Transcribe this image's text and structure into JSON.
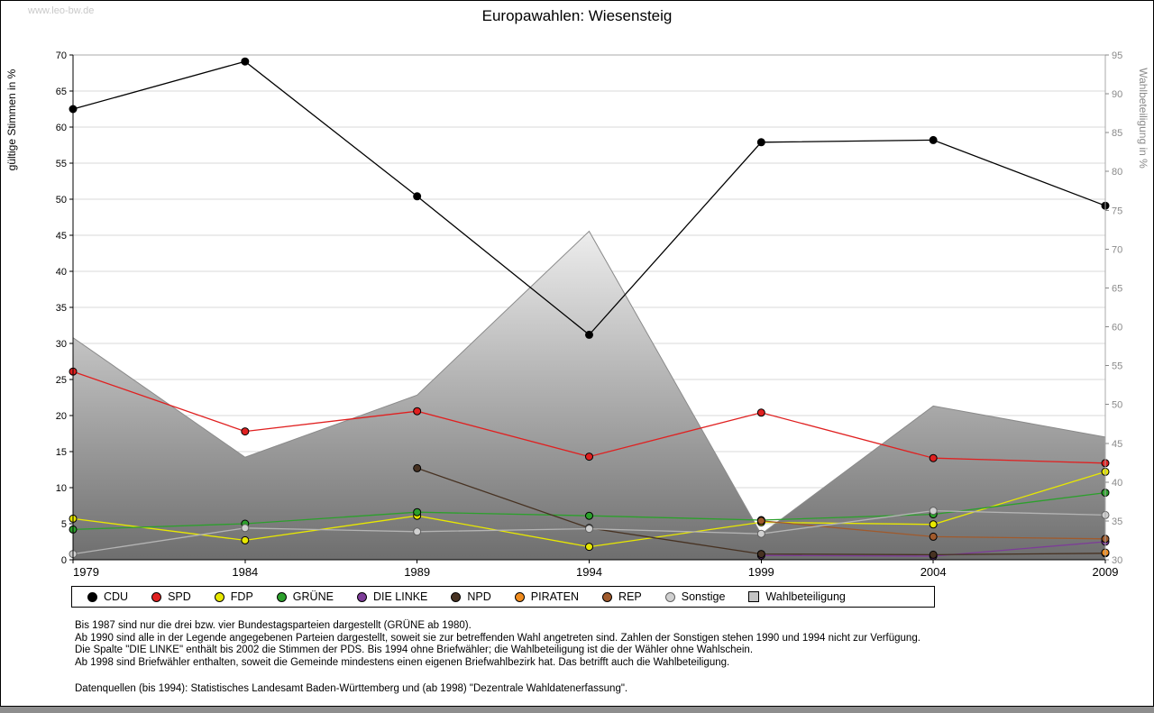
{
  "watermark": "www.leo-bw.de",
  "title": "Europawahlen: Wiesensteig",
  "chart_data": {
    "type": "line",
    "years": [
      "1979",
      "1984",
      "1989",
      "1994",
      "1999",
      "2004",
      "2009"
    ],
    "left_axis": {
      "label": "gültige Stimmen in %",
      "min": 0,
      "max": 70,
      "step": 5
    },
    "right_axis": {
      "label": "Wahlbeteiligung in %",
      "min": 30,
      "max": 95,
      "step": 5
    },
    "series": [
      {
        "id": "cdu",
        "name": "CDU",
        "color": "#000000",
        "outline": "#000000",
        "values": [
          62.5,
          69.1,
          50.4,
          31.2,
          57.9,
          58.2,
          49.1
        ]
      },
      {
        "id": "spd",
        "name": "SPD",
        "color": "#e02020",
        "outline": "#000000",
        "values": [
          26.1,
          17.8,
          20.6,
          14.3,
          20.4,
          14.1,
          13.4
        ]
      },
      {
        "id": "fdp",
        "name": "FDP",
        "color": "#e8e800",
        "outline": "#000000",
        "values": [
          5.7,
          2.7,
          6.1,
          1.8,
          5.2,
          4.9,
          12.2
        ]
      },
      {
        "id": "gruene",
        "name": "GRÜNE",
        "color": "#2ca02c",
        "outline": "#000000",
        "values": [
          4.2,
          5.0,
          6.6,
          6.1,
          5.5,
          6.3,
          9.3
        ]
      },
      {
        "id": "die-linke",
        "name": "DIE LINKE",
        "color": "#7d3c98",
        "outline": "#000000",
        "values": [
          null,
          null,
          null,
          null,
          0.6,
          0.5,
          2.5
        ]
      },
      {
        "id": "npd",
        "name": "NPD",
        "color": "#473222",
        "outline": "#000000",
        "values": [
          null,
          null,
          12.7,
          4.4,
          0.8,
          0.7,
          0.9
        ]
      },
      {
        "id": "piraten",
        "name": "PIRATEN",
        "color": "#f08c1e",
        "outline": "#000000",
        "values": [
          null,
          null,
          null,
          null,
          null,
          null,
          1.0
        ]
      },
      {
        "id": "rep",
        "name": "REP",
        "color": "#a05a2c",
        "outline": "#000000",
        "values": [
          null,
          null,
          null,
          null,
          5.4,
          3.2,
          2.9
        ]
      },
      {
        "id": "sonstige",
        "name": "Sonstige",
        "color": "#d0d0d0",
        "outline": "#606060",
        "line_color": "#b4b4b4",
        "values": [
          0.8,
          4.4,
          3.9,
          4.3,
          3.6,
          6.8,
          6.2
        ]
      }
    ],
    "area": {
      "id": "wahlbeteiligung",
      "name": "Wahlbeteiligung",
      "axis": "right",
      "values": [
        58.6,
        43.2,
        51.2,
        72.3,
        33.3,
        49.8,
        45.8
      ],
      "gradient_top": "#ededed",
      "gradient_bottom": "#6e6e6e",
      "edge_color": "#8a8a8a"
    },
    "legend": [
      {
        "id": "cdu",
        "label": "CDU",
        "color": "#000000",
        "shape": "circle"
      },
      {
        "id": "spd",
        "label": "SPD",
        "color": "#e02020",
        "shape": "circle"
      },
      {
        "id": "fdp",
        "label": "FDP",
        "color": "#e8e800",
        "shape": "circle"
      },
      {
        "id": "gruene",
        "label": "GRÜNE",
        "color": "#2ca02c",
        "shape": "circle"
      },
      {
        "id": "die-linke",
        "label": "DIE LINKE",
        "color": "#7d3c98",
        "shape": "circle"
      },
      {
        "id": "npd",
        "label": "NPD",
        "color": "#473222",
        "shape": "circle"
      },
      {
        "id": "piraten",
        "label": "PIRATEN",
        "color": "#f08c1e",
        "shape": "circle"
      },
      {
        "id": "rep",
        "label": "REP",
        "color": "#a05a2c",
        "shape": "circle"
      },
      {
        "id": "sonstige",
        "label": "Sonstige",
        "color": "#d0d0d0",
        "shape": "circle",
        "outline": "#606060"
      },
      {
        "id": "wahlbeteiligung",
        "label": "Wahlbeteiligung",
        "color": "#c4c4c4",
        "shape": "square"
      }
    ]
  },
  "notes": [
    "Bis 1987 sind nur die drei bzw. vier Bundestagsparteien dargestellt (GRÜNE ab 1980).",
    "Ab 1990 sind alle in der Legende angegebenen Parteien dargestellt, soweit sie zur betreffenden Wahl angetreten sind. Zahlen der Sonstigen stehen 1990 und 1994 nicht zur Verfügung.",
    "Die Spalte \"DIE LINKE\" enthält bis 2002 die Stimmen der PDS. Bis 1994 ohne Briefwähler; die Wahlbeteiligung ist die der Wähler ohne Wahlschein.",
    "Ab 1998 sind Briefwähler enthalten, soweit die Gemeinde mindestens einen eigenen Briefwahlbezirk hat. Das betrifft auch die Wahlbeteiligung."
  ],
  "datasource": "Datenquellen (bis 1994): Statistisches Landesamt Baden-Württemberg und (ab 1998) \"Dezentrale Wahldatenerfassung\"."
}
